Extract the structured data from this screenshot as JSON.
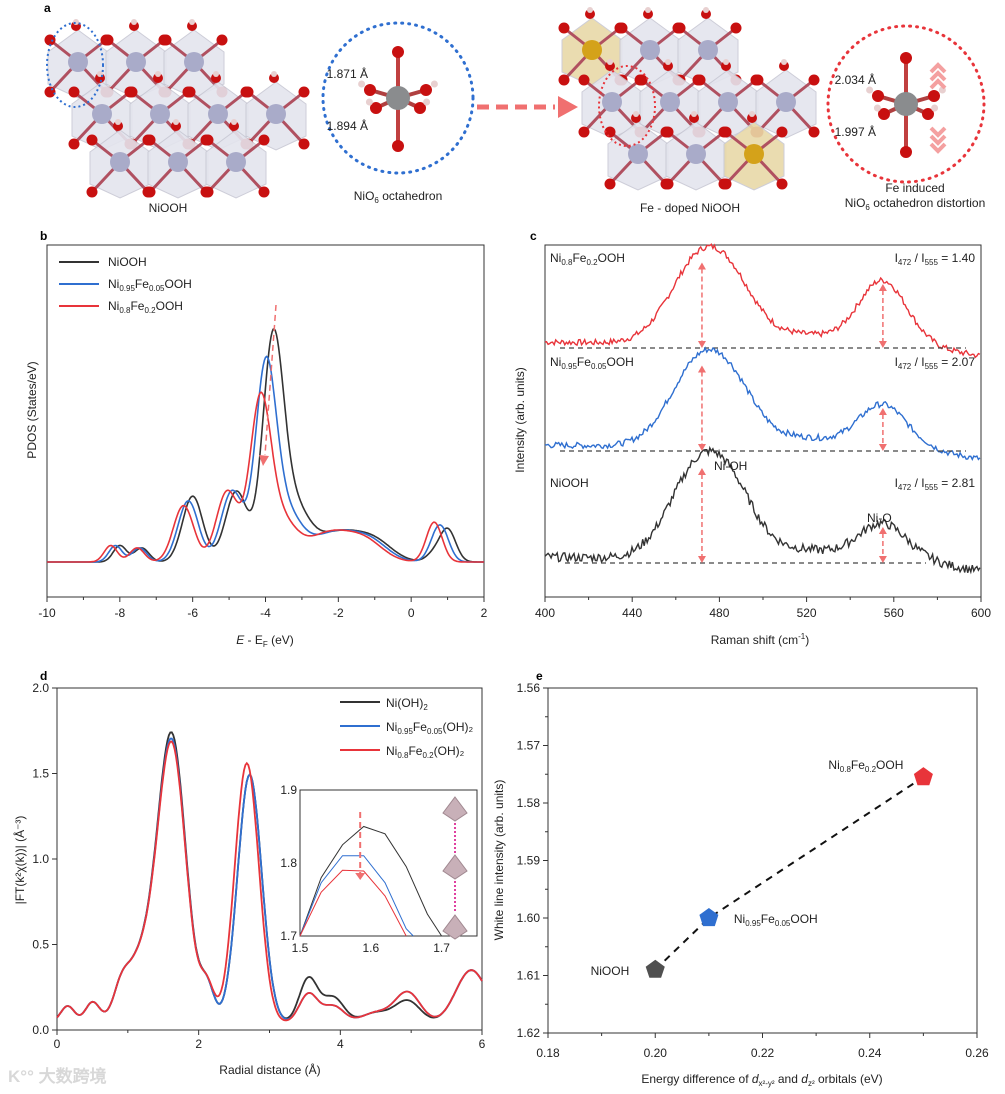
{
  "colors": {
    "black": "#333333",
    "blue": "#2f6fd0",
    "red": "#e8343a",
    "arrow": "#f07070",
    "ni": "#a9abc9",
    "o": "#c81010",
    "fe": "#d4a21a",
    "h": "#e8d0d0"
  },
  "panel_a": {
    "letter": "a",
    "niooh_label": "NiOOH",
    "octa_label": "NiO",
    "octa_sub": "6",
    "octa_label_tail": " octahedron",
    "bond_top": "1.871 Å",
    "bond_bottom": "1.894 Å",
    "doped_label": "Fe - doped NiOOH",
    "distort_line1": "Fe induced",
    "distort_line2_a": "NiO",
    "distort_line2_sub": "6",
    "distort_line2_b": " octahedron distortion",
    "bond_top_doped": "2.034 Å",
    "bond_bottom_doped": "1.997 Å"
  },
  "chart_data": [
    {
      "id": "b",
      "letter": "b",
      "type": "line",
      "xlabel_a": "E",
      "xlabel_b": " - E",
      "xlabel_sub": "F",
      "xlabel_c": " (eV)",
      "ylabel": "PDOS (States/eV)",
      "xlim": [
        -10,
        2
      ],
      "xticks": [
        "-10",
        "-8",
        "-6",
        "-4",
        "-2",
        "0",
        "2"
      ],
      "legend": [
        {
          "name": "NiOOH",
          "sub1": "",
          "mid": "",
          "sub2": "",
          "tail": ""
        },
        {
          "name": "Ni",
          "sub1": "0.95",
          "mid": "Fe",
          "sub2": "0.05",
          "tail": "OOH"
        },
        {
          "name": "Ni",
          "sub1": "0.8",
          "mid": "Fe",
          "sub2": "0.2",
          "tail": "OOH"
        }
      ],
      "series": [
        {
          "name": "NiOOH",
          "color": "black",
          "shift": 0,
          "main_peak_eV": -3.8,
          "main_peak": 1.0
        },
        {
          "name": "Ni0.95Fe0.05OOH",
          "color": "blue",
          "shift": -0.12,
          "main_peak_eV": -4.0,
          "main_peak": 0.88
        },
        {
          "name": "Ni0.8Fe0.2OOH",
          "color": "red",
          "shift": -0.25,
          "main_peak_eV": -4.15,
          "main_peak": 0.72
        }
      ]
    },
    {
      "id": "c",
      "letter": "c",
      "type": "line",
      "xlabel": "Raman shift (cm",
      "xlabel_sup": "-1",
      "xlabel_tail": ")",
      "ylabel": "Intensity (arb. units)",
      "xlim": [
        400,
        600
      ],
      "xticks": [
        "400",
        "440",
        "480",
        "520",
        "560",
        "600"
      ],
      "series": [
        {
          "name": "Ni",
          "sub1": "0.8",
          "mid": "Fe",
          "sub2": "0.2",
          "tail": "OOH",
          "color": "red",
          "ratio": "1.40",
          "i472": 0.9,
          "i555": 0.64
        },
        {
          "name": "Ni",
          "sub1": "0.95",
          "mid": "Fe",
          "sub2": "0.05",
          "tail": "OOH",
          "color": "blue",
          "ratio": "2.07",
          "i472": 0.9,
          "i555": 0.43
        },
        {
          "name": "NiOOH",
          "sub1": "",
          "mid": "",
          "sub2": "",
          "tail": "",
          "color": "black",
          "ratio": "2.81",
          "i472": 1.0,
          "i555": 0.36
        }
      ],
      "ratio_label": {
        "i": "I",
        "s1": "472",
        "slash": " / ",
        "s2": "555",
        "eq": " = "
      },
      "annotations": [
        "Ni-OH",
        "Ni-O"
      ]
    },
    {
      "id": "d",
      "letter": "d",
      "type": "line",
      "xlabel": "Radial distance (Å)",
      "ylabel": "|FT(k²χ(k))| (Å⁻³)",
      "xlim": [
        0,
        6
      ],
      "ylim": [
        0,
        2.0
      ],
      "xticks": [
        "0",
        "2",
        "4",
        "6"
      ],
      "yticks": [
        "0.0",
        "0.5",
        "1.0",
        "1.5",
        "2.0"
      ],
      "legend": [
        {
          "name": "Ni(OH)",
          "sub1": "2",
          "mid": "",
          "sub2": "",
          "tail": ""
        },
        {
          "name": "Ni",
          "sub1": "0.95",
          "mid": "Fe",
          "sub2": "0.05",
          "tail": "(OH)₂"
        },
        {
          "name": "Ni",
          "sub1": "0.8",
          "mid": "Fe",
          "sub2": "0.2",
          "tail": "(OH)₂"
        }
      ],
      "series": [
        {
          "name": "Ni(OH)2",
          "color": "black",
          "peak1": 1.85,
          "peak2": 1.53
        },
        {
          "name": "Ni0.95Fe0.05(OH)2",
          "color": "blue",
          "peak1": 1.81,
          "peak2": 1.53
        },
        {
          "name": "Ni0.8Fe0.2(OH)2",
          "color": "red",
          "peak1": 1.79,
          "peak2": 1.6
        }
      ],
      "inset": {
        "xlim": [
          1.5,
          1.75
        ],
        "ylim": [
          1.7,
          1.9
        ],
        "xticks": [
          "1.5",
          "1.6",
          "1.7"
        ],
        "yticks": [
          "1.7",
          "1.8",
          "1.9"
        ],
        "series": [
          {
            "color": "black",
            "x": [
              1.5,
              1.53,
              1.56,
              1.59,
              1.62,
              1.65,
              1.68,
              1.7
            ],
            "y": [
              1.69,
              1.78,
              1.825,
              1.85,
              1.84,
              1.795,
              1.73,
              1.69
            ]
          },
          {
            "color": "blue",
            "x": [
              1.5,
              1.53,
              1.56,
              1.59,
              1.62,
              1.65,
              1.66
            ],
            "y": [
              1.7,
              1.773,
              1.81,
              1.81,
              1.773,
              1.71,
              1.69
            ]
          },
          {
            "color": "red",
            "x": [
              1.5,
              1.53,
              1.56,
              1.59,
              1.62,
              1.65
            ],
            "y": [
              1.7,
              1.76,
              1.79,
              1.789,
              1.755,
              1.7
            ]
          }
        ]
      }
    },
    {
      "id": "e",
      "letter": "e",
      "type": "scatter",
      "xlabel_a": "Energy difference of ",
      "xlabel_d1": "d",
      "xlabel_s1": "x²-y²",
      "xlabel_b": " and ",
      "xlabel_d2": "d",
      "xlabel_s2": "z²",
      "xlabel_c": " orbitals (eV)",
      "ylabel": "White line intensity  (arb. units)",
      "xlim": [
        0.18,
        0.26
      ],
      "ylim": [
        1.56,
        1.62
      ],
      "y_inverted": true,
      "xticks": [
        "0.18",
        "0.20",
        "0.22",
        "0.24",
        "0.26"
      ],
      "yticks": [
        "1.56",
        "1.57",
        "1.58",
        "1.59",
        "1.60",
        "1.61",
        "1.62"
      ],
      "points": [
        {
          "label": "NiOOH",
          "sub1": "",
          "mid": "",
          "sub2": "",
          "tail": "",
          "x": 0.2,
          "y": 1.609,
          "color": "black"
        },
        {
          "label": "Ni",
          "sub1": "0.95",
          "mid": "Fe",
          "sub2": "0.05",
          "tail": "OOH",
          "x": 0.21,
          "y": 1.6,
          "color": "blue"
        },
        {
          "label": "Ni",
          "sub1": "0.8",
          "mid": "Fe",
          "sub2": "0.2",
          "tail": "OOH",
          "x": 0.25,
          "y": 1.5755,
          "color": "red"
        }
      ]
    }
  ],
  "watermark": "大数跨境"
}
